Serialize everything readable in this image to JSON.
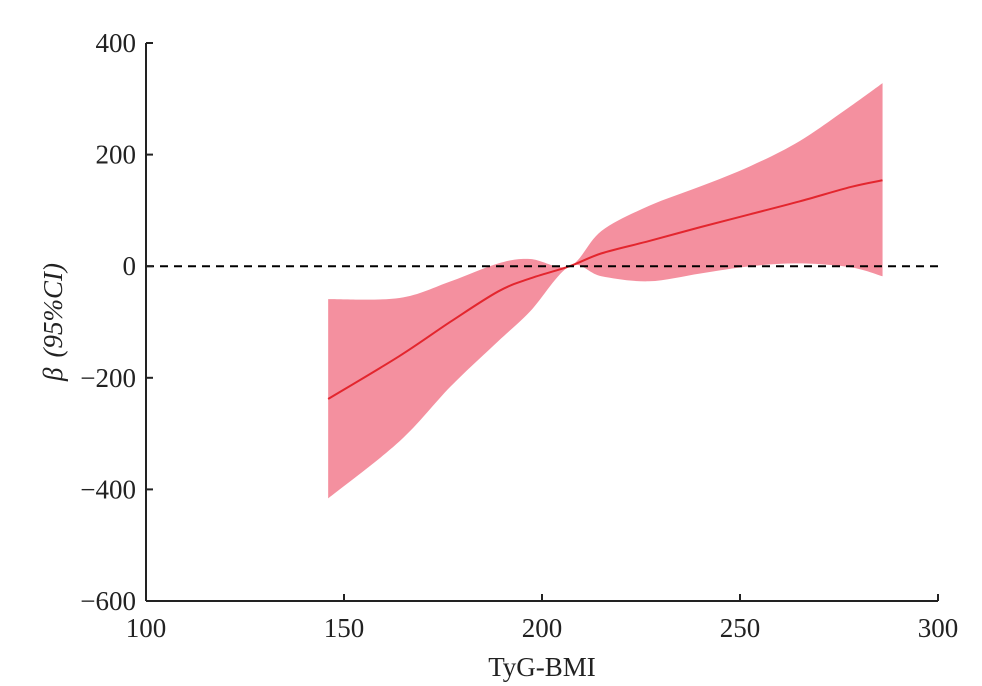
{
  "chart_data": {
    "type": "line",
    "title": "",
    "xlabel": "TyG-BMI",
    "ylabel_symbol": "β",
    "ylabel_rest": "(95%CI)",
    "xlim": [
      100,
      300
    ],
    "ylim": [
      -600,
      400
    ],
    "xticks": [
      100,
      150,
      200,
      250,
      300
    ],
    "yticks": [
      400,
      200,
      0,
      -200,
      -400,
      -600
    ],
    "xtick_labels": [
      "100",
      "150",
      "200",
      "250",
      "300"
    ],
    "ytick_labels": [
      "400",
      "200",
      "0",
      "−200",
      "−400",
      "−600"
    ],
    "reference_line": 0,
    "grid": false,
    "colors": {
      "line": "#e3262e",
      "band": "#f4909f",
      "reference": "#000000"
    },
    "series": [
      {
        "name": "β",
        "x": [
          146,
          164,
          177,
          189,
          197,
          207,
          215,
          227,
          240,
          252.5,
          265,
          278,
          286
        ],
        "y": [
          -238,
          -161,
          -99,
          -45,
          -22,
          0,
          23,
          45,
          70,
          93,
          116,
          142,
          154
        ],
        "upper": [
          -59,
          -57,
          -27,
          5,
          13,
          0,
          63,
          108,
          143,
          179,
          224,
          287,
          328
        ],
        "lower": [
          -416,
          -314,
          -215,
          -134,
          -81,
          0,
          -18,
          -27,
          -13,
          0,
          5,
          -2,
          -18
        ]
      }
    ]
  }
}
